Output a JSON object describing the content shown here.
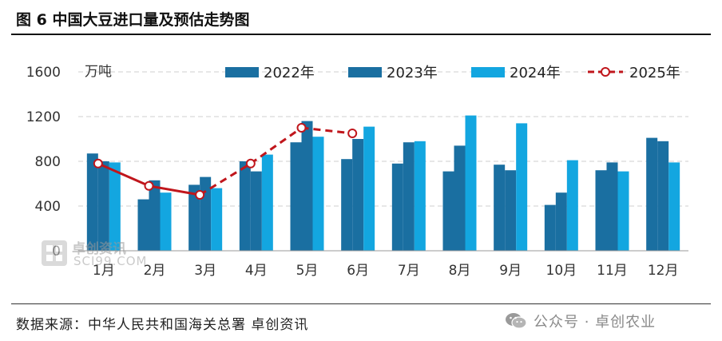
{
  "title": "图 6  中国大豆进口量及预估走势图",
  "source": "数据来源：中华人民共和国海关总署  卓创资讯",
  "watermark_footer": "公众号 · 卓创农业",
  "watermark_chart": {
    "name": "卓创资讯",
    "domain": "SCI99.COM"
  },
  "chart_data": {
    "type": "bar",
    "unit_label": "万吨",
    "categories": [
      "1月",
      "2月",
      "3月",
      "4月",
      "5月",
      "6月",
      "7月",
      "8月",
      "9月",
      "10月",
      "11月",
      "12月"
    ],
    "yticks": [
      0,
      400,
      800,
      1200,
      1600
    ],
    "ylim": [
      0,
      1600
    ],
    "grid": "horizontal dashed",
    "legend_position": "top",
    "series": [
      {
        "name": "2022年",
        "kind": "bar",
        "color": "#1a6fa1",
        "values": [
          870,
          460,
          590,
          800,
          970,
          820,
          780,
          710,
          770,
          410,
          720,
          1010
        ]
      },
      {
        "name": "2023年",
        "kind": "bar",
        "color": "#1a6fa1",
        "values": [
          800,
          630,
          660,
          710,
          1160,
          1000,
          970,
          940,
          720,
          520,
          790,
          980
        ]
      },
      {
        "name": "2024年",
        "kind": "bar",
        "color": "#13a6e0",
        "values": [
          790,
          520,
          560,
          860,
          1020,
          1110,
          980,
          1210,
          1140,
          810,
          710,
          790
        ]
      },
      {
        "name": "2025年",
        "kind": "line",
        "color": "#c0161c",
        "values": [
          780,
          580,
          500,
          780,
          1100,
          1050,
          null,
          null,
          null,
          null,
          null,
          null
        ]
      }
    ]
  }
}
